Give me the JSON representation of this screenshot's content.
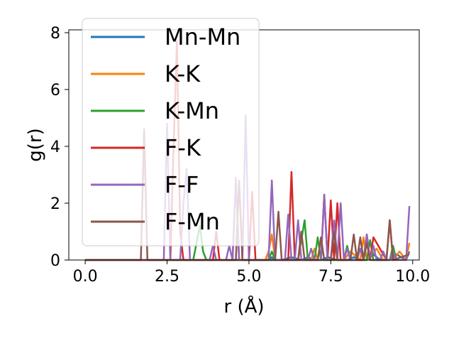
{
  "chart_data": {
    "type": "line",
    "xlabel": "r (Å)",
    "ylabel": "g(r)",
    "xlim": [
      -0.5,
      10.2
    ],
    "ylim": [
      0,
      8.1
    ],
    "xticks": [
      "0.0",
      "2.5",
      "5.0",
      "7.5",
      "10.0"
    ],
    "xtick_values": [
      0,
      2.5,
      5.0,
      7.5,
      10.0
    ],
    "yticks": [
      "0",
      "2",
      "4",
      "6",
      "8"
    ],
    "ytick_values": [
      0,
      2,
      4,
      6,
      8
    ],
    "legend_position": "upper-left",
    "series": [
      {
        "name": "Mn-Mn",
        "color": "#1f77b4",
        "x": [
          0,
          5.6,
          5.7,
          5.8,
          6.0,
          6.3,
          6.6,
          6.8,
          7.0,
          7.2,
          7.4,
          7.7,
          8.0,
          8.2,
          8.4,
          8.6,
          8.8,
          9.0,
          9.3,
          9.5,
          9.8,
          9.9
        ],
        "y": [
          0,
          0,
          0.1,
          0,
          0,
          0.1,
          0,
          0.1,
          0,
          0,
          0.1,
          0,
          0,
          0.1,
          0,
          0,
          0.2,
          0,
          0,
          0.2,
          0,
          0.3
        ]
      },
      {
        "name": "K-K",
        "color": "#ff7f0e",
        "x": [
          0,
          5.5,
          5.6,
          5.7,
          5.8,
          6.5,
          6.9,
          7.0,
          7.1,
          7.6,
          7.9,
          8.1,
          8.4,
          8.5,
          8.6,
          8.9,
          9.1,
          9.4,
          9.6,
          9.8,
          9.9
        ],
        "y": [
          0,
          0,
          0.3,
          0.9,
          0,
          0,
          0,
          0.4,
          0,
          0,
          0,
          0.3,
          0,
          0.8,
          0,
          0.4,
          0,
          0,
          0.3,
          0,
          0.6
        ]
      },
      {
        "name": "K-Mn",
        "color": "#2ca02c",
        "x": [
          0,
          3.3,
          3.5,
          3.6,
          3.7,
          5.6,
          5.7,
          5.8,
          6.5,
          6.7,
          6.8,
          7.0,
          7.1,
          7.2,
          7.9,
          8.0,
          8.1,
          8.6,
          8.7,
          8.8,
          9.3,
          9.4,
          9.5
        ],
        "y": [
          0,
          0,
          1.2,
          0.3,
          0,
          0,
          0.3,
          0,
          0,
          1.4,
          0,
          0,
          0.8,
          0,
          0,
          0.5,
          0,
          0,
          0.7,
          0,
          0,
          0.5,
          0
        ]
      },
      {
        "name": "F-K",
        "color": "#d62728",
        "x": [
          0,
          2.6,
          2.7,
          2.8,
          2.9,
          3.0,
          3.9,
          4.0,
          4.1,
          4.5,
          4.6,
          4.7,
          5.0,
          5.1,
          5.2,
          6.2,
          6.3,
          6.4,
          7.2,
          7.3,
          7.4,
          7.5,
          7.6,
          7.7,
          7.8,
          8.5,
          8.6,
          8.7,
          8.8,
          9.2,
          9.3,
          9.4,
          9.5
        ],
        "y": [
          0,
          0,
          4.0,
          7.7,
          1.0,
          0,
          0,
          1.0,
          0,
          0,
          2.8,
          0,
          0,
          2.4,
          0,
          0,
          3.1,
          0,
          0,
          2.3,
          0,
          2.1,
          0,
          2.0,
          0,
          0,
          0.9,
          0,
          0.8,
          0,
          1.4,
          0,
          0
        ]
      },
      {
        "name": "F-F",
        "color": "#9467bd",
        "x": [
          0,
          2.4,
          2.5,
          2.6,
          2.9,
          3.0,
          3.1,
          3.2,
          3.3,
          3.8,
          3.9,
          4.0,
          4.3,
          4.4,
          4.5,
          4.6,
          4.7,
          4.8,
          4.9,
          5.0,
          5.1,
          5.6,
          5.7,
          5.8,
          5.9,
          6.1,
          6.2,
          6.3,
          6.4,
          6.5,
          6.6,
          6.8,
          6.9,
          7.0,
          7.2,
          7.3,
          7.4,
          7.5,
          7.6,
          7.7,
          7.8,
          7.9,
          8.0,
          8.1,
          8.2,
          8.3,
          8.4,
          8.5,
          8.6,
          8.7,
          8.8,
          8.9,
          9.0,
          9.1,
          9.2,
          9.3,
          9.4,
          9.5,
          9.6,
          9.7,
          9.8,
          9.9
        ],
        "y": [
          0,
          0,
          4.8,
          0,
          0,
          2.0,
          3.2,
          0,
          0,
          0,
          0.5,
          0,
          0,
          0.5,
          0,
          2.9,
          0,
          0,
          5.1,
          0,
          0,
          0,
          2.8,
          0,
          0,
          0,
          1.6,
          0,
          0,
          1.4,
          0,
          0,
          0.4,
          0,
          0,
          2.3,
          0,
          0,
          1.4,
          0,
          2.0,
          0,
          0.4,
          0,
          0,
          0,
          0.4,
          0,
          0.9,
          0,
          0.5,
          0,
          0,
          0.3,
          0,
          0,
          0.3,
          0,
          0,
          0,
          0,
          1.9
        ]
      },
      {
        "name": "F-Mn",
        "color": "#8c564b",
        "x": [
          0,
          1.7,
          1.8,
          1.9,
          4.6,
          4.7,
          4.8,
          5.8,
          5.9,
          6.0,
          6.5,
          6.6,
          6.7,
          7.1,
          7.2,
          7.3,
          7.5,
          7.6,
          7.7,
          8.1,
          8.2,
          8.3,
          8.4,
          8.5,
          8.6,
          8.7,
          9.2,
          9.3,
          9.4,
          9.9
        ],
        "y": [
          0,
          0,
          4.6,
          0,
          0,
          2.8,
          0,
          0,
          1.7,
          0,
          0,
          1.0,
          0,
          0,
          0.8,
          0,
          0,
          1.0,
          0,
          0,
          0.9,
          0,
          0.8,
          0,
          0.6,
          0,
          0,
          1.4,
          0,
          0.2
        ]
      }
    ]
  }
}
